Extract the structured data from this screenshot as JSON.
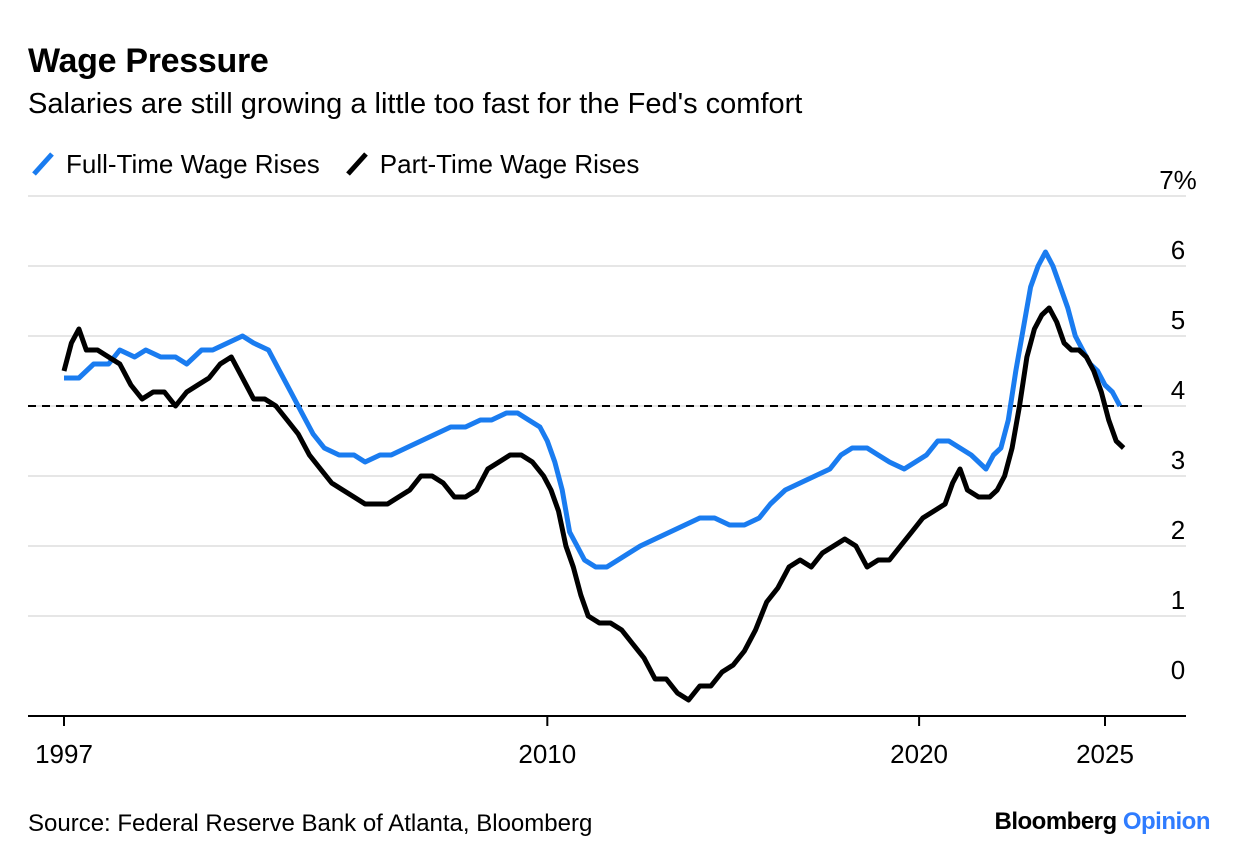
{
  "header": {
    "title": "Wage Pressure",
    "subtitle": "Salaries are still growing a little too fast for the Fed's comfort"
  },
  "footer": {
    "source": "Source: Federal Reserve Bank of Atlanta, Bloomberg",
    "brand_primary": "Bloomberg",
    "brand_secondary": "Opinion"
  },
  "chart_data": {
    "type": "line",
    "title": "Wage Pressure",
    "subtitle": "Salaries are still growing a little too fast for the Fed's comfort",
    "xlabel": "",
    "ylabel": "",
    "xlim": [
      1996,
      2027
    ],
    "ylim": [
      -0.4,
      7
    ],
    "x_ticks": [
      1997,
      2010,
      2020,
      2025
    ],
    "x_tick_labels": [
      "1997",
      "2010",
      "2020",
      "2025"
    ],
    "y_ticks": [
      0,
      1,
      2,
      3,
      4,
      5,
      6,
      7
    ],
    "y_tick_labels": [
      "0",
      "1",
      "2",
      "3",
      "4",
      "5",
      "6",
      "7%"
    ],
    "reference_line": {
      "y": 4,
      "style": "dashed"
    },
    "grid": true,
    "legend_position": "top-left",
    "series": [
      {
        "name": "Full-Time Wage Rises",
        "color": "#1a7cf0",
        "points": [
          [
            1997.0,
            4.4
          ],
          [
            1997.4,
            4.4
          ],
          [
            1997.8,
            4.6
          ],
          [
            1998.2,
            4.6
          ],
          [
            1998.5,
            4.8
          ],
          [
            1998.9,
            4.7
          ],
          [
            1999.2,
            4.8
          ],
          [
            1999.6,
            4.7
          ],
          [
            2000.0,
            4.7
          ],
          [
            2000.3,
            4.6
          ],
          [
            2000.7,
            4.8
          ],
          [
            2001.0,
            4.8
          ],
          [
            2001.4,
            4.9
          ],
          [
            2001.8,
            5.0
          ],
          [
            2002.1,
            4.9
          ],
          [
            2002.5,
            4.8
          ],
          [
            2002.8,
            4.5
          ],
          [
            2003.1,
            4.2
          ],
          [
            2003.4,
            3.9
          ],
          [
            2003.7,
            3.6
          ],
          [
            2004.0,
            3.4
          ],
          [
            2004.4,
            3.3
          ],
          [
            2004.8,
            3.3
          ],
          [
            2005.1,
            3.2
          ],
          [
            2005.5,
            3.3
          ],
          [
            2005.8,
            3.3
          ],
          [
            2006.2,
            3.4
          ],
          [
            2006.6,
            3.5
          ],
          [
            2007.0,
            3.6
          ],
          [
            2007.4,
            3.7
          ],
          [
            2007.8,
            3.7
          ],
          [
            2008.2,
            3.8
          ],
          [
            2008.5,
            3.8
          ],
          [
            2008.9,
            3.9
          ],
          [
            2009.2,
            3.9
          ],
          [
            2009.5,
            3.8
          ],
          [
            2009.8,
            3.7
          ],
          [
            2010.0,
            3.5
          ],
          [
            2010.2,
            3.2
          ],
          [
            2010.4,
            2.8
          ],
          [
            2010.6,
            2.2
          ],
          [
            2010.8,
            2.0
          ],
          [
            2011.0,
            1.8
          ],
          [
            2011.3,
            1.7
          ],
          [
            2011.6,
            1.7
          ],
          [
            2011.9,
            1.8
          ],
          [
            2012.2,
            1.9
          ],
          [
            2012.5,
            2.0
          ],
          [
            2012.9,
            2.1
          ],
          [
            2013.3,
            2.2
          ],
          [
            2013.7,
            2.3
          ],
          [
            2014.1,
            2.4
          ],
          [
            2014.5,
            2.4
          ],
          [
            2014.9,
            2.3
          ],
          [
            2015.3,
            2.3
          ],
          [
            2015.7,
            2.4
          ],
          [
            2016.0,
            2.6
          ],
          [
            2016.4,
            2.8
          ],
          [
            2016.8,
            2.9
          ],
          [
            2017.2,
            3.0
          ],
          [
            2017.6,
            3.1
          ],
          [
            2017.9,
            3.3
          ],
          [
            2018.2,
            3.4
          ],
          [
            2018.6,
            3.4
          ],
          [
            2018.9,
            3.3
          ],
          [
            2019.2,
            3.2
          ],
          [
            2019.6,
            3.1
          ],
          [
            2019.9,
            3.2
          ],
          [
            2020.2,
            3.3
          ],
          [
            2020.5,
            3.5
          ],
          [
            2020.8,
            3.5
          ],
          [
            2021.1,
            3.4
          ],
          [
            2021.4,
            3.3
          ],
          [
            2021.6,
            3.2
          ],
          [
            2021.8,
            3.1
          ],
          [
            2022.0,
            3.3
          ],
          [
            2022.2,
            3.4
          ],
          [
            2022.4,
            3.8
          ],
          [
            2022.6,
            4.5
          ],
          [
            2022.8,
            5.1
          ],
          [
            2023.0,
            5.7
          ],
          [
            2023.2,
            6.0
          ],
          [
            2023.4,
            6.2
          ],
          [
            2023.6,
            6.0
          ],
          [
            2023.8,
            5.7
          ],
          [
            2024.0,
            5.4
          ],
          [
            2024.2,
            5.0
          ],
          [
            2024.4,
            4.8
          ],
          [
            2024.6,
            4.6
          ],
          [
            2024.8,
            4.5
          ],
          [
            2025.0,
            4.3
          ],
          [
            2025.2,
            4.2
          ],
          [
            2025.4,
            4.0
          ]
        ]
      },
      {
        "name": "Part-Time Wage Rises",
        "color": "#000000",
        "points": [
          [
            1997.0,
            4.5
          ],
          [
            1997.2,
            4.9
          ],
          [
            1997.4,
            5.1
          ],
          [
            1997.6,
            4.8
          ],
          [
            1997.9,
            4.8
          ],
          [
            1998.2,
            4.7
          ],
          [
            1998.5,
            4.6
          ],
          [
            1998.8,
            4.3
          ],
          [
            1999.1,
            4.1
          ],
          [
            1999.4,
            4.2
          ],
          [
            1999.7,
            4.2
          ],
          [
            2000.0,
            4.0
          ],
          [
            2000.3,
            4.2
          ],
          [
            2000.6,
            4.3
          ],
          [
            2000.9,
            4.4
          ],
          [
            2001.2,
            4.6
          ],
          [
            2001.5,
            4.7
          ],
          [
            2001.8,
            4.4
          ],
          [
            2002.1,
            4.1
          ],
          [
            2002.4,
            4.1
          ],
          [
            2002.7,
            4.0
          ],
          [
            2003.0,
            3.8
          ],
          [
            2003.3,
            3.6
          ],
          [
            2003.6,
            3.3
          ],
          [
            2003.9,
            3.1
          ],
          [
            2004.2,
            2.9
          ],
          [
            2004.5,
            2.8
          ],
          [
            2004.8,
            2.7
          ],
          [
            2005.1,
            2.6
          ],
          [
            2005.4,
            2.6
          ],
          [
            2005.7,
            2.6
          ],
          [
            2006.0,
            2.7
          ],
          [
            2006.3,
            2.8
          ],
          [
            2006.6,
            3.0
          ],
          [
            2006.9,
            3.0
          ],
          [
            2007.2,
            2.9
          ],
          [
            2007.5,
            2.7
          ],
          [
            2007.8,
            2.7
          ],
          [
            2008.1,
            2.8
          ],
          [
            2008.4,
            3.1
          ],
          [
            2008.7,
            3.2
          ],
          [
            2009.0,
            3.3
          ],
          [
            2009.3,
            3.3
          ],
          [
            2009.6,
            3.2
          ],
          [
            2009.9,
            3.0
          ],
          [
            2010.1,
            2.8
          ],
          [
            2010.3,
            2.5
          ],
          [
            2010.5,
            2.0
          ],
          [
            2010.7,
            1.7
          ],
          [
            2010.9,
            1.3
          ],
          [
            2011.1,
            1.0
          ],
          [
            2011.4,
            0.9
          ],
          [
            2011.7,
            0.9
          ],
          [
            2012.0,
            0.8
          ],
          [
            2012.3,
            0.6
          ],
          [
            2012.6,
            0.4
          ],
          [
            2012.9,
            0.1
          ],
          [
            2013.2,
            0.1
          ],
          [
            2013.5,
            -0.1
          ],
          [
            2013.8,
            -0.2
          ],
          [
            2014.1,
            0.0
          ],
          [
            2014.4,
            0.0
          ],
          [
            2014.7,
            0.2
          ],
          [
            2015.0,
            0.3
          ],
          [
            2015.3,
            0.5
          ],
          [
            2015.6,
            0.8
          ],
          [
            2015.9,
            1.2
          ],
          [
            2016.2,
            1.4
          ],
          [
            2016.5,
            1.7
          ],
          [
            2016.8,
            1.8
          ],
          [
            2017.1,
            1.7
          ],
          [
            2017.4,
            1.9
          ],
          [
            2017.7,
            2.0
          ],
          [
            2018.0,
            2.1
          ],
          [
            2018.3,
            2.0
          ],
          [
            2018.6,
            1.7
          ],
          [
            2018.9,
            1.8
          ],
          [
            2019.2,
            1.8
          ],
          [
            2019.5,
            2.0
          ],
          [
            2019.8,
            2.2
          ],
          [
            2020.1,
            2.4
          ],
          [
            2020.4,
            2.5
          ],
          [
            2020.7,
            2.6
          ],
          [
            2020.9,
            2.9
          ],
          [
            2021.1,
            3.1
          ],
          [
            2021.3,
            2.8
          ],
          [
            2021.6,
            2.7
          ],
          [
            2021.9,
            2.7
          ],
          [
            2022.1,
            2.8
          ],
          [
            2022.3,
            3.0
          ],
          [
            2022.5,
            3.4
          ],
          [
            2022.7,
            4.0
          ],
          [
            2022.9,
            4.7
          ],
          [
            2023.1,
            5.1
          ],
          [
            2023.3,
            5.3
          ],
          [
            2023.5,
            5.4
          ],
          [
            2023.7,
            5.2
          ],
          [
            2023.9,
            4.9
          ],
          [
            2024.1,
            4.8
          ],
          [
            2024.3,
            4.8
          ],
          [
            2024.5,
            4.7
          ],
          [
            2024.7,
            4.5
          ],
          [
            2024.9,
            4.2
          ],
          [
            2025.1,
            3.8
          ],
          [
            2025.3,
            3.5
          ],
          [
            2025.5,
            3.4
          ]
        ]
      }
    ]
  }
}
